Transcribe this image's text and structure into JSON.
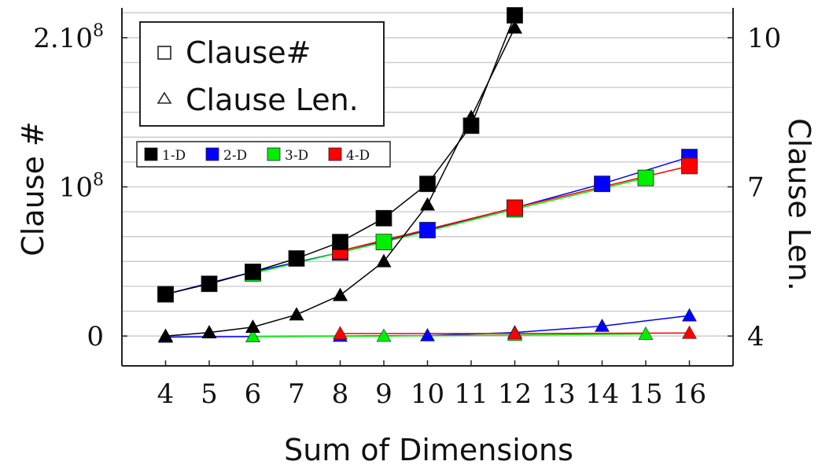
{
  "chart_data": {
    "type": "line",
    "xlabel": "Sum of Dimensions",
    "ylabel_left": "Clause #",
    "ylabel_right": "Clause Len.",
    "x_ticks": [
      4,
      5,
      6,
      7,
      8,
      9,
      10,
      11,
      12,
      13,
      14,
      15,
      16
    ],
    "xlim": [
      3,
      17
    ],
    "ylim_left": [
      -20000000,
      220000000
    ],
    "ylim_right": [
      3.4,
      10.6
    ],
    "y_ticks_left": [
      {
        "value": 0,
        "label": "0",
        "sup": ""
      },
      {
        "value": 100000000,
        "label": "10",
        "sup": "8"
      },
      {
        "value": 200000000,
        "label": "2.10",
        "sup": "8"
      }
    ],
    "y_ticks_right": [
      {
        "value": 4,
        "label": "4"
      },
      {
        "value": 7,
        "label": "7"
      },
      {
        "value": 10,
        "label": "10"
      }
    ],
    "grid_y": true,
    "marker_legend": [
      {
        "label": "Clause#",
        "marker": "square",
        "axis": "left"
      },
      {
        "label": "Clause Len.",
        "marker": "triangle",
        "axis": "right"
      }
    ],
    "series": [
      {
        "name": "1-D",
        "color": "#000000",
        "clause_count": {
          "x": [
            4,
            5,
            6,
            7,
            8,
            9,
            10,
            11,
            12
          ],
          "y": [
            28000000,
            35000000,
            43000000,
            52000000,
            63000000,
            79000000,
            102000000,
            141000000,
            215000000
          ]
        },
        "clause_len": {
          "x": [
            4,
            5,
            6,
            7,
            8,
            9,
            10,
            11,
            12
          ],
          "y": [
            4.0,
            4.07,
            4.18,
            4.43,
            4.82,
            5.5,
            6.64,
            8.4,
            10.2
          ]
        }
      },
      {
        "name": "2-D",
        "color": "#0000ff",
        "clause_count": {
          "x": [
            4,
            6,
            8,
            10,
            12,
            14,
            16
          ],
          "y": [
            28000000,
            43000000,
            56000000,
            71000000,
            86000000,
            102000000,
            120000000
          ]
        },
        "clause_len": {
          "x": [
            4,
            6,
            8,
            10,
            12,
            14,
            16
          ],
          "y": [
            3.98,
            3.99,
            4.0,
            4.01,
            4.07,
            4.2,
            4.41
          ]
        }
      },
      {
        "name": "3-D",
        "color": "#00ee00",
        "clause_count": {
          "x": [
            6,
            9,
            12,
            15
          ],
          "y": [
            42000000,
            63000000,
            85000000,
            106000000
          ]
        },
        "clause_len": {
          "x": [
            6,
            9,
            12,
            15
          ],
          "y": [
            3.99,
            4.0,
            4.02,
            4.04
          ]
        }
      },
      {
        "name": "4-D",
        "color": "#ff0000",
        "clause_count": {
          "x": [
            8,
            12,
            16
          ],
          "y": [
            57000000,
            86000000,
            114000000
          ]
        },
        "clause_len": {
          "x": [
            8,
            12,
            16
          ],
          "y": [
            4.05,
            4.05,
            4.06
          ]
        }
      }
    ]
  }
}
